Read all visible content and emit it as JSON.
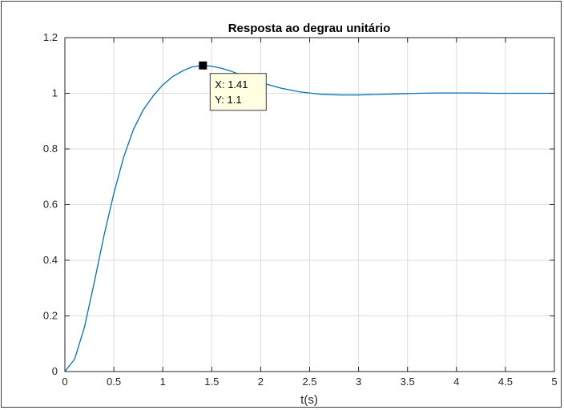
{
  "chart_data": {
    "type": "line",
    "title": "Resposta ao degrau unitário",
    "xlabel": "t(s)",
    "ylabel": "",
    "xlim": [
      0,
      5
    ],
    "ylim": [
      0,
      1.2
    ],
    "xticks": [
      "0",
      "0.5",
      "1",
      "1.5",
      "2",
      "2.5",
      "3",
      "3.5",
      "4",
      "4.5",
      "5"
    ],
    "yticks": [
      "0",
      "0.2",
      "0.4",
      "0.6",
      "0.8",
      "1",
      "1.2"
    ],
    "grid": true,
    "series": [
      {
        "color": "#0072bd",
        "x": [
          0,
          0.1,
          0.2,
          0.3,
          0.4,
          0.5,
          0.6,
          0.7,
          0.8,
          0.9,
          1.0,
          1.1,
          1.2,
          1.3,
          1.41,
          1.5,
          1.6,
          1.7,
          1.8,
          1.9,
          2.0,
          2.2,
          2.4,
          2.6,
          2.8,
          3.0,
          3.2,
          3.4,
          3.6,
          3.8,
          4.0,
          4.2,
          4.4,
          4.6,
          4.8,
          5.0
        ],
        "y": [
          0,
          0.045,
          0.16,
          0.32,
          0.49,
          0.64,
          0.77,
          0.87,
          0.94,
          0.99,
          1.03,
          1.06,
          1.08,
          1.095,
          1.1,
          1.097,
          1.09,
          1.079,
          1.066,
          1.052,
          1.039,
          1.019,
          1.005,
          0.997,
          0.994,
          0.994,
          0.996,
          0.998,
          1.0,
          1.001,
          1.001,
          1.001,
          1.0,
          1.0,
          1.0,
          1.0
        ]
      }
    ],
    "datatip": {
      "x": 1.41,
      "y": 1.1,
      "x_text": "X: 1.41",
      "y_text": "Y: 1.1"
    }
  }
}
